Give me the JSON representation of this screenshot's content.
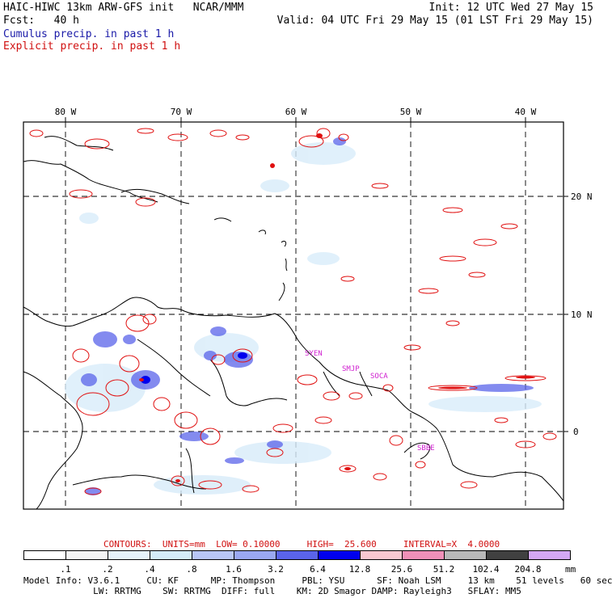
{
  "header": {
    "model": "HAIC-HIWC 13km ARW-GFS init   NCAR/MMM",
    "init": "Init: 12 UTC Wed 27 May 15",
    "fcst": "Fcst:   40 h",
    "valid": "Valid: 04 UTC Fri 29 May 15 (01 LST Fri 29 May 15)",
    "legend_cumulus": "Cumulus precip. in past 1 h",
    "legend_explicit": "Explicit precip. in past 1 h"
  },
  "map": {
    "lon_labels": [
      "80 W",
      "70 W",
      "60 W",
      "50 W",
      "40 W"
    ],
    "lat_labels": [
      "20 N",
      "10 N",
      "0"
    ],
    "stations": [
      "SYEN",
      "SMJP",
      "SOCA",
      "SBBE"
    ],
    "colors": {
      "coast": "#000000",
      "explicit": "#e01010",
      "cumulus": "#4040e8",
      "station": "#d020d0"
    }
  },
  "contours": {
    "label": "CONTOURS:  UNITS=mm  LOW= 0.10000     HIGH=  25.600     INTERVAL=X  4.0000"
  },
  "scale": {
    "labels": [
      ".1",
      ".2",
      ".4",
      ".8",
      "1.6",
      "3.2",
      "6.4",
      "12.8",
      "25.6",
      "51.2",
      "102.4",
      "204.8"
    ],
    "unit": "mm",
    "colors": [
      "#ffffff",
      "#f4f4f4",
      "#e6f2fa",
      "#d4ecf8",
      "#b8c6f6",
      "#9aa8f2",
      "#5a64ea",
      "#0000ee",
      "#f8c8d0",
      "#f090b8",
      "#b8b8b8",
      "#404040",
      "#d4a8f4"
    ]
  },
  "footer": {
    "line1": "Model Info: V3.6.1     CU: KF      MP: Thompson     PBL: YSU      SF: Noah LSM     13 km    51 levels   60 sec",
    "line2": "             LW: RRTMG    SW: RRTMG  DIFF: full    KM: 2D Smagor DAMP: Rayleigh3   SFLAY: MM5"
  }
}
